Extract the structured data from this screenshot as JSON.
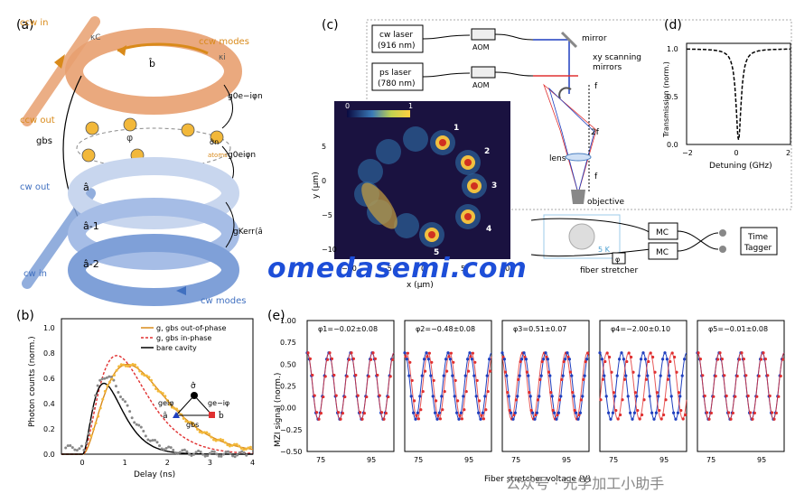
{
  "panel_labels": [
    "(a)",
    "(b)",
    "(c)",
    "(d)",
    "(e)"
  ],
  "panel_a": {
    "ccw_in": "ccw in",
    "ccw_out": "ccw out",
    "ccw_modes": "ccw modes",
    "cw_out": "cw out",
    "cw_in": "cw in",
    "cw_modes": "cw modes",
    "kappa_c": "κC",
    "kappa_i": "κi",
    "b_hat": "b̂",
    "a_hat": "â",
    "a_m1": "â-1",
    "a_m2": "â-2",
    "g_bs": "gbs",
    "phi": "φ",
    "sigma_n": "σ̂n",
    "atoms": "atoms",
    "coupling_top": "g0e−iφn",
    "coupling_bottom": "g0eiφn",
    "kerr": "gKerr⟨â-1⟩²"
  },
  "panel_b": {
    "ylabel": "Photon counts (norm.)",
    "xlabel": "Delay (ns)",
    "legend": [
      "g, gbs out-of-phase",
      "g, gbs in-phase",
      "bare cavity"
    ],
    "xticks": [
      "0",
      "1",
      "2",
      "3",
      "4"
    ],
    "yticks": [
      "0.0",
      "0.2",
      "0.4",
      "0.6",
      "0.8",
      "1.0"
    ],
    "diagram": {
      "sigma": "σ̂",
      "left": "geiφ",
      "right": "ge−iφ",
      "a": "â",
      "b": "b̂",
      "gbs": "gbs"
    }
  },
  "panel_c": {
    "cw_laser": "cw laser",
    "cw_laser_wl": "(916 nm)",
    "ps_laser": "ps laser",
    "ps_laser_wl": "(780 nm)",
    "aom": "AOM",
    "mirror": "mirror",
    "xy_scanning": "xy scanning",
    "mirrors": "mirrors",
    "f": "f",
    "two_f": "2f",
    "lens": "lens",
    "objective": "objective",
    "temp": "5 K",
    "mc": "MC",
    "time": "Time",
    "tagger": "Tagger",
    "phi": "φ",
    "fiber_stretcher": "fiber stretcher",
    "map_ylabel": "y (μm)",
    "map_xlabel": "x (μm)",
    "colorbar_min": "0",
    "colorbar_max": "1",
    "map_xticks": [
      "−10",
      "−5",
      "0",
      "5",
      "10"
    ],
    "map_yticks": [
      "5",
      "0",
      "−5",
      "−10"
    ],
    "sites": [
      "1",
      "2",
      "3",
      "4",
      "5"
    ]
  },
  "panel_d": {
    "ylabel": "Transmission (norm.)",
    "xlabel": "Detuning (GHz)",
    "xticks": [
      "−2",
      "0",
      "2"
    ],
    "yticks": [
      "0.0",
      "0.5",
      "1.0"
    ]
  },
  "panel_e": {
    "ylabel": "MZI signal (norm.)",
    "xlabel": "Fiber stretcher voltage (V)",
    "yticks": [
      "1.00",
      "0.75",
      "0.50",
      "0.25",
      "0.00",
      "−0.25",
      "−0.50"
    ],
    "xticks": [
      "75",
      "95"
    ],
    "phases": [
      "φ1=−0.02±0.08",
      "φ2=−0.48±0.08",
      "φ3=0.51±0.07",
      "φ4=−2.00±0.10",
      "φ5=−0.01±0.08"
    ]
  },
  "watermark": "omedasemi.com",
  "watermark2": "公众号 · 光学加工小助手",
  "colors": {
    "ccw": "#e8a070",
    "cw": "#7fa0d8",
    "orange": "#d98a1a",
    "red": "#e03030",
    "blue": "#1f3fbf",
    "gold": "#f2b83a"
  }
}
